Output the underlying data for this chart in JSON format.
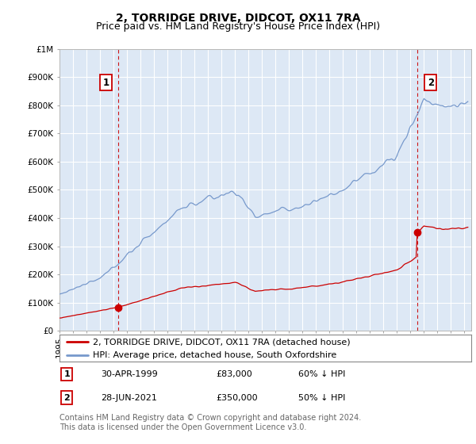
{
  "title": "2, TORRIDGE DRIVE, DIDCOT, OX11 7RA",
  "subtitle": "Price paid vs. HM Land Registry's House Price Index (HPI)",
  "ylim": [
    0,
    1000000
  ],
  "xlim_start": 1995.0,
  "xlim_end": 2025.5,
  "yticks": [
    0,
    100000,
    200000,
    300000,
    400000,
    500000,
    600000,
    700000,
    800000,
    900000,
    1000000
  ],
  "ytick_labels": [
    "£0",
    "£100K",
    "£200K",
    "£300K",
    "£400K",
    "£500K",
    "£600K",
    "£700K",
    "£800K",
    "£900K",
    "£1M"
  ],
  "hpi_color": "#7799cc",
  "property_color": "#cc0000",
  "chart_bg": "#dde8f5",
  "sale1_year": 1999.33,
  "sale1_price": 83000,
  "sale1_label": "1",
  "sale1_date": "30-APR-1999",
  "sale1_price_str": "£83,000",
  "sale1_pct": "60% ↓ HPI",
  "sale2_year": 2021.49,
  "sale2_price": 350000,
  "sale2_label": "2",
  "sale2_date": "28-JUN-2021",
  "sale2_price_str": "£350,000",
  "sale2_pct": "50% ↓ HPI",
  "legend_line1": "2, TORRIDGE DRIVE, DIDCOT, OX11 7RA (detached house)",
  "legend_line2": "HPI: Average price, detached house, South Oxfordshire",
  "footnote": "Contains HM Land Registry data © Crown copyright and database right 2024.\nThis data is licensed under the Open Government Licence v3.0.",
  "bg_color": "#ffffff",
  "grid_color": "#ffffff",
  "title_fontsize": 10,
  "subtitle_fontsize": 9,
  "tick_fontsize": 7.5,
  "legend_fontsize": 8,
  "footnote_fontsize": 7
}
